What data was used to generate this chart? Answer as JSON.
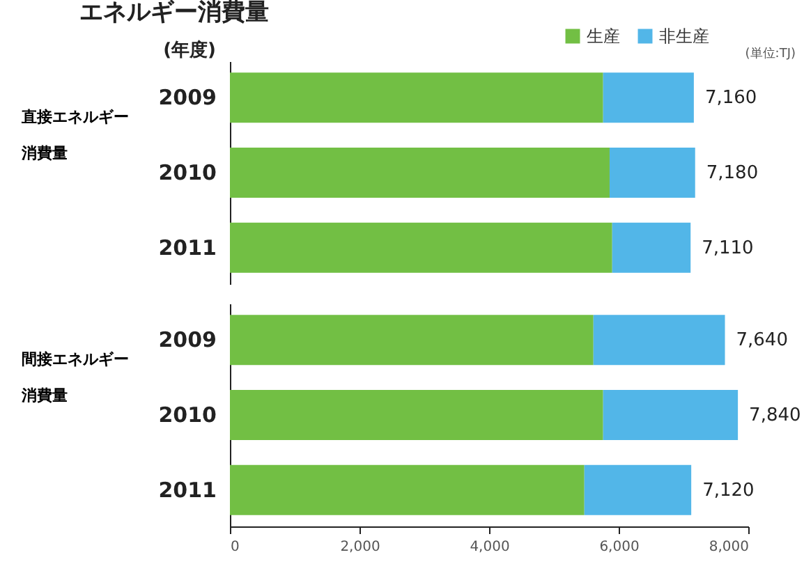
{
  "chart_data": [
    {
      "type": "bar",
      "orientation": "horizontal",
      "stacked": true,
      "title": "エネルギー消費量",
      "ylabel": "直接エネルギー消費量",
      "categories": [
        "2009",
        "2010",
        "2011"
      ],
      "series": [
        {
          "name": "生産",
          "color": "#72bf44",
          "values": [
            5760,
            5860,
            5900
          ]
        },
        {
          "name": "非生産",
          "color": "#52b6e8",
          "values": [
            1400,
            1320,
            1210
          ]
        }
      ],
      "totals": [
        "7,160",
        "7,180",
        "7,110"
      ],
      "xlim": [
        0,
        8000
      ],
      "legend": "top right",
      "tick_labels": "y",
      "annotations": [
        "(年度)",
        "(単位:TJ)"
      ]
    },
    {
      "type": "bar",
      "orientation": "horizontal",
      "stacked": true,
      "ylabel": "間接エネルギー消費量",
      "categories": [
        "2009",
        "2010",
        "2011"
      ],
      "series": [
        {
          "color": "#72bf44",
          "values": [
            5610,
            5760,
            5470
          ]
        },
        {
          "color": "#52b6e8",
          "values": [
            2030,
            2080,
            1650
          ]
        }
      ],
      "totals": [
        "7,640",
        "7,840",
        "7,120"
      ],
      "xlim": [
        0,
        8000
      ],
      "xticks": [
        {
          "value": 0,
          "label": "0"
        },
        {
          "value": 2000,
          "label": "2,000"
        },
        {
          "value": 4000,
          "label": "4,000"
        },
        {
          "value": 6000,
          "label": "6,000"
        },
        {
          "value": 8000,
          "label": "8,000"
        }
      ]
    }
  ]
}
